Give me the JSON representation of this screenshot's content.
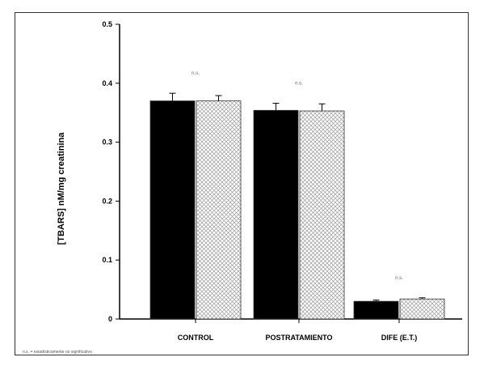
{
  "chart_data": {
    "type": "bar",
    "ylabel": "[TBARS] nM/mg creatinina",
    "xlabel": "",
    "ylim": [
      0,
      0.5
    ],
    "yticks": [
      "0",
      "0.1",
      "0.2",
      "0.3",
      "0.4",
      "0.5"
    ],
    "categories": [
      "CONTROL",
      "POSTRATAMIENTO",
      "DIFE (E.T.)"
    ],
    "series": [
      {
        "name": "",
        "color": "#000000",
        "pattern": "solid",
        "values": [
          0.37,
          0.354,
          0.03
        ],
        "errors": [
          0.013,
          0.012,
          0.002
        ],
        "sublabels": [
          "",
          "",
          ""
        ]
      },
      {
        "name": "",
        "color": "#ffffff",
        "pattern": "crosshatch",
        "values": [
          0.37,
          0.353,
          0.034
        ],
        "errors": [
          0.009,
          0.012,
          0.002
        ],
        "sublabels": [
          "",
          "",
          ""
        ]
      }
    ],
    "annotations": [
      "n.s.",
      "n.s.",
      "n.s."
    ],
    "footnote": "n.s. = estadísticamente no significativo",
    "grid": false,
    "legend": "none"
  }
}
